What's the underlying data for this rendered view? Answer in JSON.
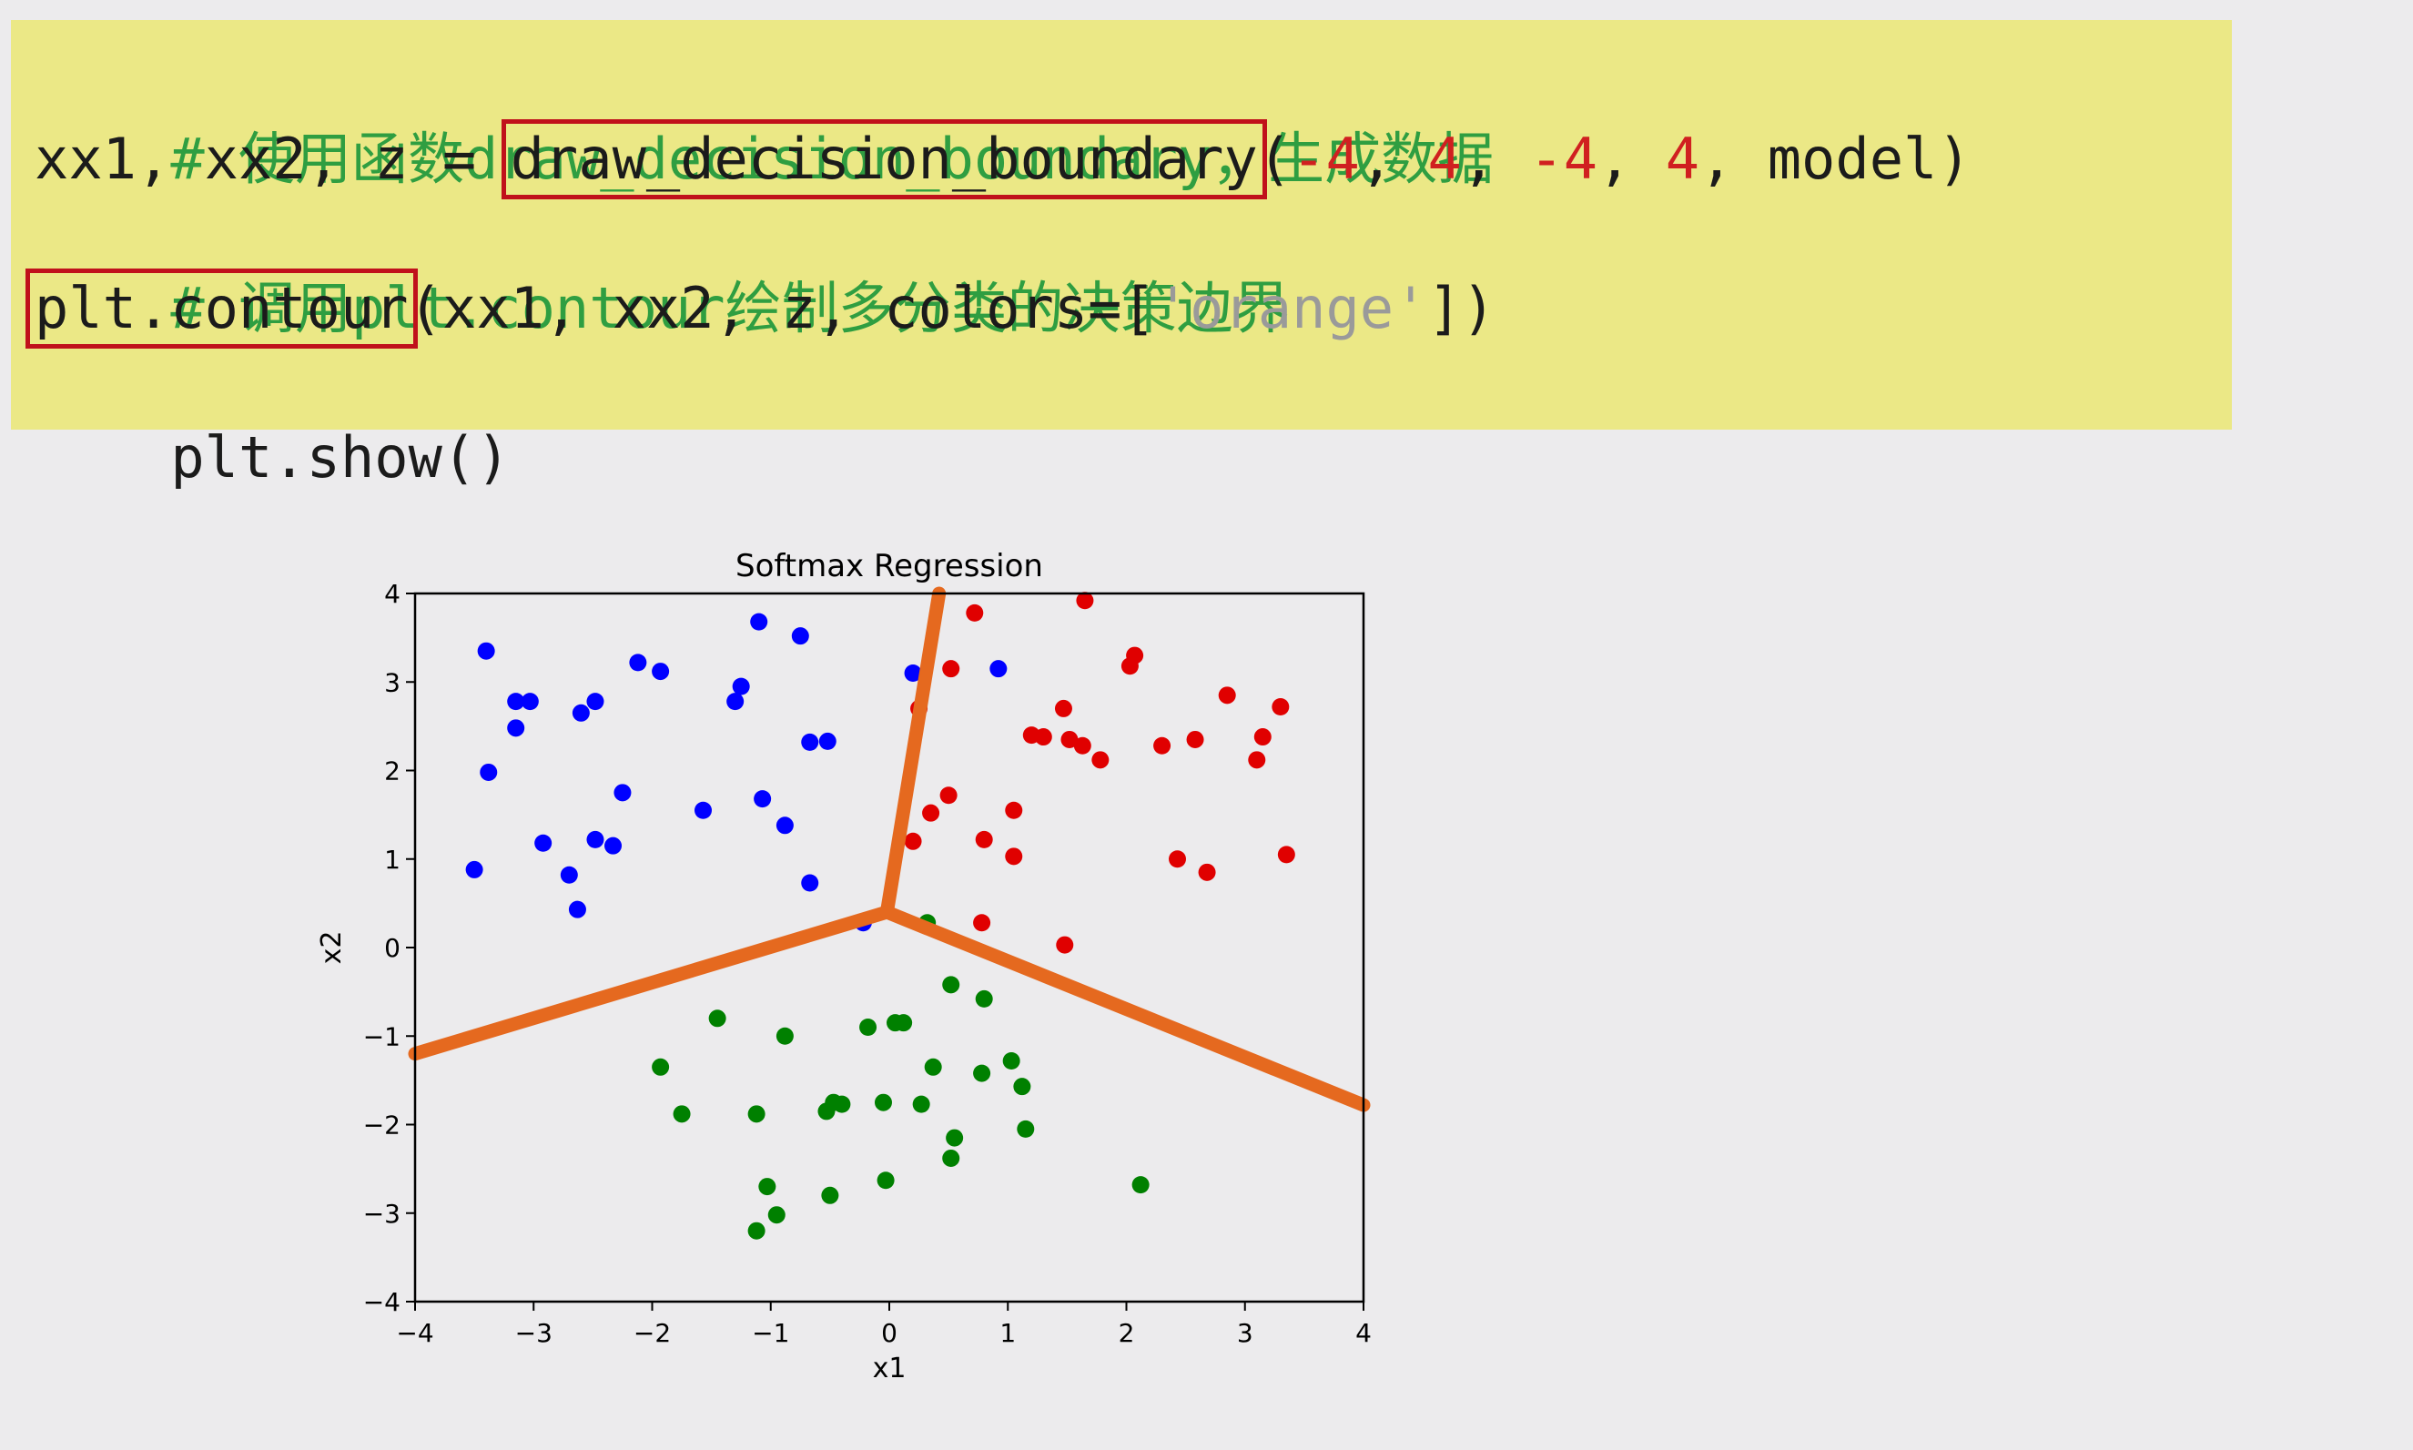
{
  "code": {
    "line1_comment": "# 使用函数draw_decision_boundary，生成数据",
    "line2_prefix": "xx1, xx2, z = ",
    "line2_func": "draw_decision_boundary",
    "line2_open": "(",
    "line2_a1": "-4",
    "line2_sep1": ", ",
    "line2_a2": "4",
    "line2_sep2": ", ",
    "line2_a3": "-4",
    "line2_sep3": ", ",
    "line2_a4": "4",
    "line2_tail": ", model)",
    "line3_comment": "# 调用plt.contour绘制多分类的决策边界",
    "line4_func": "plt.contour",
    "line4_args": "(xx1, xx2, z, colors=[",
    "line4_string": "'orange'",
    "line4_close": "])",
    "line5": "plt.show()"
  },
  "chart_data": {
    "type": "scatter",
    "title": "Softmax Regression",
    "xlabel": "x1",
    "ylabel": "x2",
    "xlim": [
      -4,
      4
    ],
    "ylim": [
      -4,
      4
    ],
    "xticks": [
      -4,
      -3,
      -2,
      -1,
      0,
      1,
      2,
      3,
      4
    ],
    "yticks": [
      -4,
      -3,
      -2,
      -1,
      0,
      1,
      2,
      3,
      4
    ],
    "grid": false,
    "series": [
      {
        "color": "#0000ff",
        "points": [
          [
            -3.4,
            3.35
          ],
          [
            -3.15,
            2.78
          ],
          [
            -3.03,
            2.78
          ],
          [
            -3.15,
            2.48
          ],
          [
            -3.38,
            1.98
          ],
          [
            -2.6,
            2.65
          ],
          [
            -2.48,
            2.78
          ],
          [
            -2.25,
            1.75
          ],
          [
            -2.12,
            3.22
          ],
          [
            -1.93,
            3.12
          ],
          [
            -2.92,
            1.18
          ],
          [
            -2.48,
            1.22
          ],
          [
            -2.33,
            1.15
          ],
          [
            -2.7,
            0.82
          ],
          [
            -2.63,
            0.43
          ],
          [
            -3.5,
            0.88
          ],
          [
            -1.57,
            1.55
          ],
          [
            -1.3,
            2.78
          ],
          [
            -1.25,
            2.95
          ],
          [
            -1.1,
            3.68
          ],
          [
            -0.75,
            3.52
          ],
          [
            -0.67,
            2.32
          ],
          [
            -0.52,
            2.33
          ],
          [
            -1.07,
            1.68
          ],
          [
            -0.88,
            1.38
          ],
          [
            -0.67,
            0.73
          ],
          [
            0.2,
            3.1
          ],
          [
            0.92,
            3.15
          ],
          [
            -0.22,
            0.28
          ]
        ]
      },
      {
        "color": "#e00000",
        "points": [
          [
            0.72,
            3.78
          ],
          [
            1.65,
            3.92
          ],
          [
            0.52,
            3.15
          ],
          [
            0.25,
            2.7
          ],
          [
            2.03,
            3.18
          ],
          [
            2.07,
            3.3
          ],
          [
            1.2,
            2.4
          ],
          [
            1.3,
            2.38
          ],
          [
            1.47,
            2.7
          ],
          [
            1.52,
            2.35
          ],
          [
            1.63,
            2.28
          ],
          [
            1.78,
            2.12
          ],
          [
            2.3,
            2.28
          ],
          [
            2.58,
            2.35
          ],
          [
            2.85,
            2.85
          ],
          [
            3.15,
            2.38
          ],
          [
            3.1,
            2.12
          ],
          [
            3.3,
            2.72
          ],
          [
            0.35,
            1.52
          ],
          [
            0.5,
            1.72
          ],
          [
            0.2,
            1.2
          ],
          [
            0.8,
            1.22
          ],
          [
            1.05,
            1.55
          ],
          [
            1.05,
            1.03
          ],
          [
            0.78,
            0.28
          ],
          [
            1.48,
            0.03
          ],
          [
            2.43,
            1.0
          ],
          [
            2.68,
            0.85
          ],
          [
            3.35,
            1.05
          ]
        ]
      },
      {
        "color": "#008000",
        "points": [
          [
            0.32,
            0.28
          ],
          [
            0.52,
            -0.42
          ],
          [
            0.8,
            -0.58
          ],
          [
            -1.45,
            -0.8
          ],
          [
            -0.88,
            -1.0
          ],
          [
            -0.18,
            -0.9
          ],
          [
            0.05,
            -0.85
          ],
          [
            0.12,
            -0.85
          ],
          [
            0.37,
            -1.35
          ],
          [
            0.78,
            -1.42
          ],
          [
            1.03,
            -1.28
          ],
          [
            1.12,
            -1.57
          ],
          [
            -1.93,
            -1.35
          ],
          [
            -1.75,
            -1.88
          ],
          [
            -1.12,
            -1.88
          ],
          [
            -0.53,
            -1.85
          ],
          [
            -0.47,
            -1.75
          ],
          [
            -0.4,
            -1.77
          ],
          [
            -0.05,
            -1.75
          ],
          [
            0.27,
            -1.77
          ],
          [
            0.55,
            -2.15
          ],
          [
            0.52,
            -2.38
          ],
          [
            1.15,
            -2.05
          ],
          [
            -1.03,
            -2.7
          ],
          [
            -1.12,
            -3.2
          ],
          [
            -0.95,
            -3.02
          ],
          [
            -0.5,
            -2.8
          ],
          [
            -0.03,
            -2.63
          ],
          [
            2.12,
            -2.68
          ]
        ]
      }
    ],
    "decision_boundary": {
      "color": "#e5691f",
      "center": [
        -0.02,
        0.4
      ],
      "rays": [
        [
          [
            -0.02,
            0.4
          ],
          [
            0.42,
            4.0
          ]
        ],
        [
          [
            -0.02,
            0.4
          ],
          [
            -4.0,
            -1.2
          ]
        ],
        [
          [
            -0.02,
            0.4
          ],
          [
            4.0,
            -1.78
          ]
        ]
      ]
    }
  }
}
